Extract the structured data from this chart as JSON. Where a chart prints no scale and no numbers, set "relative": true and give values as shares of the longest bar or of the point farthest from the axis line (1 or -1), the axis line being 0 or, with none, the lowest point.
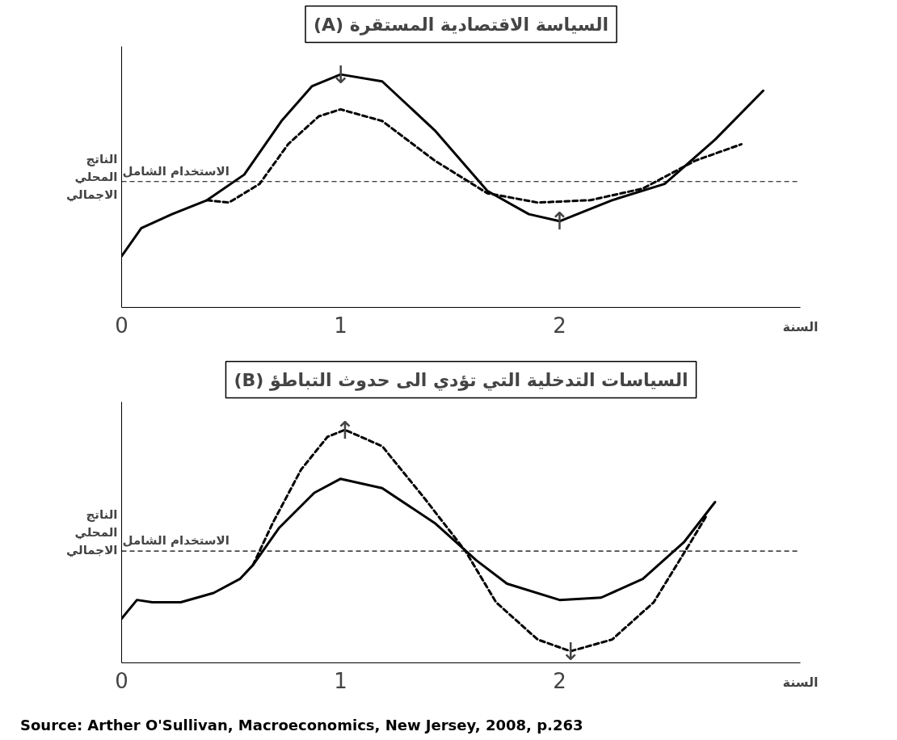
{
  "chart_data": [
    {
      "type": "line",
      "title": "(A) السياسة الاقتصادية المستقرة",
      "ylabel": "الناتج المحلي الاجمالي",
      "xlabel": "السنة",
      "relative": true,
      "xlim": [
        0,
        3.1
      ],
      "xticks": [
        0,
        1,
        2
      ],
      "grid": false,
      "marker": "none",
      "tick_labels": "x",
      "series": [
        {
          "color": "#000000",
          "line_style": "solid",
          "x": [
            0,
            0.09,
            0.23,
            0.39,
            0.56,
            0.73,
            0.87,
            1,
            1.19,
            1.43,
            1.67,
            1.86,
            2,
            2.24,
            2.48,
            2.71,
            2.93
          ],
          "values": [
            0.22,
            0.34,
            0.4,
            0.46,
            0.57,
            0.8,
            0.95,
            1.0,
            0.97,
            0.76,
            0.5,
            0.4,
            0.37,
            0.46,
            0.53,
            0.72,
            0.93
          ]
        },
        {
          "color": "#000000",
          "line_style": "dashed",
          "x": [
            0.39,
            0.49,
            0.63,
            0.76,
            0.9,
            1,
            1.19,
            1.43,
            1.67,
            1.9,
            2.14,
            2.38,
            2.62,
            2.83
          ],
          "values": [
            0.46,
            0.45,
            0.53,
            0.7,
            0.82,
            0.85,
            0.8,
            0.63,
            0.49,
            0.45,
            0.46,
            0.51,
            0.63,
            0.7
          ]
        }
      ],
      "ref_lines": [
        {
          "axis": "y",
          "value": 0.54,
          "label": "الاستخدام الشامل",
          "line_style": "dashed",
          "color": "#000000"
        }
      ],
      "annotations": [
        {
          "text": "↓",
          "x": 1,
          "y": 1.0
        },
        {
          "text": "↑",
          "x": 2,
          "y": 0.37
        }
      ]
    },
    {
      "type": "line",
      "title": "(B) السياسات التدخلية التي تؤدي الى حدوث التباطؤ",
      "ylabel": "الناتج المحلي الاجمالي",
      "xlabel": "السنة",
      "relative": true,
      "xlim": [
        0,
        3.1
      ],
      "xticks": [
        0,
        1,
        2
      ],
      "grid": false,
      "marker": "none",
      "tick_labels": "x",
      "series": [
        {
          "color": "#000000",
          "line_style": "solid",
          "x": [
            0,
            0.07,
            0.14,
            0.27,
            0.42,
            0.54,
            0.6,
            0.72,
            0.88,
            1,
            1.19,
            1.43,
            1.62,
            1.76,
            2,
            2.19,
            2.38,
            2.57,
            2.71
          ],
          "values": [
            0.19,
            0.27,
            0.26,
            0.26,
            0.3,
            0.36,
            0.42,
            0.58,
            0.73,
            0.79,
            0.75,
            0.6,
            0.44,
            0.34,
            0.27,
            0.28,
            0.36,
            0.52,
            0.69
          ]
        },
        {
          "color": "#000000",
          "line_style": "dashed",
          "x": [
            0.6,
            0.69,
            0.82,
            0.94,
            1.02,
            1.19,
            1.38,
            1.57,
            1.71,
            1.9,
            2.05,
            2.24,
            2.43,
            2.6,
            2.67
          ],
          "values": [
            0.42,
            0.6,
            0.83,
            0.97,
            1.0,
            0.93,
            0.71,
            0.48,
            0.26,
            0.1,
            0.05,
            0.1,
            0.26,
            0.52,
            0.63
          ]
        }
      ],
      "ref_lines": [
        {
          "axis": "y",
          "value": 0.48,
          "label": "الاستخدام الشامل",
          "line_style": "dashed",
          "color": "#000000"
        }
      ],
      "annotations": [
        {
          "text": "↑",
          "x": 1.02,
          "y": 1.0
        },
        {
          "text": "↓",
          "x": 2.05,
          "y": 0.05
        },
        "Source: Arther O'Sullivan, Macroeconomics, New Jersey, 2008, p.263"
      ]
    }
  ]
}
